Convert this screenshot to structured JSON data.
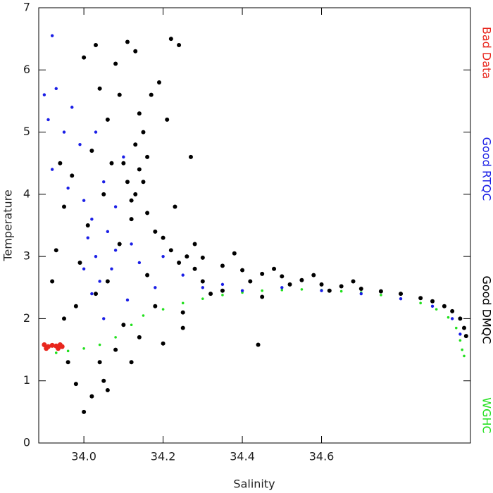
{
  "chart_data": {
    "type": "scatter",
    "x_label": "Salinity",
    "y_label": "Temperature",
    "xlim": [
      33.886,
      34.976
    ],
    "ylim": [
      0,
      7
    ],
    "xticks": [
      {
        "value": 34,
        "label": "34.0"
      },
      34.2,
      34.4,
      34.6
    ],
    "yticks": [
      0,
      1,
      2,
      3,
      4,
      5,
      6,
      7
    ],
    "series": [
      {
        "name": "Bad Data",
        "color": "#e8261d",
        "x": [
          33.9,
          33.91,
          33.92,
          33.93,
          33.94,
          33.945,
          33.905,
          33.935
        ],
        "values": [
          1.58,
          1.55,
          1.57,
          1.56,
          1.58,
          1.55,
          1.52,
          1.52
        ]
      },
      {
        "name": "Good RTQC",
        "color": "#1a1ee6",
        "x": [
          33.9,
          33.91,
          33.92,
          33.92,
          33.93,
          33.95,
          33.97,
          33.99,
          34.0,
          34.01,
          34.02,
          34.03,
          34.04,
          34.05,
          34.06,
          34.07,
          34.08,
          34.1,
          34.12,
          34.14,
          34.0,
          34.02,
          34.05,
          34.08,
          34.2,
          34.25,
          34.3,
          34.35,
          34.4,
          34.5,
          34.6,
          34.7,
          34.8,
          34.88,
          34.93,
          34.95,
          34.18,
          34.03,
          33.96,
          34.11
        ],
        "values": [
          5.6,
          5.2,
          4.4,
          6.55,
          5.7,
          5.0,
          5.4,
          4.8,
          3.9,
          3.3,
          3.6,
          3.0,
          2.6,
          4.2,
          3.4,
          2.8,
          3.8,
          4.6,
          3.2,
          2.9,
          2.8,
          2.4,
          2.0,
          3.1,
          3.0,
          2.7,
          2.5,
          2.55,
          2.45,
          2.5,
          2.45,
          2.4,
          2.32,
          2.2,
          2.0,
          1.75,
          2.5,
          5.0,
          4.1,
          2.3
        ]
      },
      {
        "name": "Good DMQC",
        "color": "#000000",
        "x": [
          34.3,
          34.35,
          34.4,
          34.45,
          34.5,
          34.55,
          34.6,
          34.65,
          34.7,
          34.75,
          34.8,
          34.85,
          34.88,
          34.91,
          34.93,
          34.95,
          34.96,
          34.965,
          34.42,
          34.48,
          34.52,
          34.58,
          34.62,
          34.68,
          34.45,
          34.44,
          34.35,
          34.25,
          34.25,
          34.3,
          34.38,
          34.28,
          34.32,
          34.12,
          34.13,
          34.14,
          34.13,
          34.15,
          34.16,
          34.11,
          34.14,
          34.17,
          34.19,
          34.21,
          34.12,
          34.15,
          34.1,
          34.16,
          34.18,
          34.2,
          34.22,
          34.24,
          34.26,
          33.92,
          33.93,
          33.95,
          33.96,
          33.98,
          34.0,
          34.02,
          34.04,
          34.06,
          34.08,
          34.1,
          34.03,
          33.99,
          34.01,
          34.05,
          34.07,
          34.09,
          34.02,
          34.06,
          34.08,
          34.11,
          34.13,
          34.0,
          34.03,
          34.22,
          34.24,
          33.97,
          33.95,
          33.94,
          34.04,
          34.09,
          34.18,
          34.2,
          34.14,
          34.06,
          33.98,
          34.16,
          34.27,
          34.23,
          34.28,
          34.05,
          34.12
        ],
        "values": [
          2.98,
          2.85,
          2.78,
          2.72,
          2.68,
          2.62,
          2.55,
          2.52,
          2.48,
          2.44,
          2.4,
          2.33,
          2.28,
          2.2,
          2.12,
          2.0,
          1.85,
          1.72,
          2.6,
          2.8,
          2.55,
          2.7,
          2.45,
          2.6,
          2.35,
          1.58,
          2.45,
          2.1,
          1.85,
          2.6,
          3.05,
          3.2,
          2.4,
          3.6,
          4.0,
          4.4,
          4.8,
          5.0,
          4.6,
          4.2,
          5.3,
          5.6,
          5.8,
          5.2,
          3.9,
          4.2,
          4.5,
          3.7,
          3.4,
          3.3,
          3.1,
          2.9,
          3.0,
          2.6,
          3.1,
          2.0,
          1.3,
          0.95,
          0.5,
          0.75,
          1.3,
          0.85,
          1.5,
          1.9,
          2.4,
          2.9,
          3.5,
          4.0,
          4.5,
          3.2,
          4.7,
          5.2,
          6.1,
          6.45,
          6.3,
          6.2,
          6.4,
          6.5,
          6.4,
          4.3,
          3.8,
          4.5,
          5.7,
          5.6,
          2.2,
          1.6,
          1.7,
          2.6,
          2.2,
          2.7,
          4.6,
          3.8,
          2.8,
          1.0,
          1.3
        ]
      },
      {
        "name": "WGHC",
        "color": "#22e01e",
        "x": [
          33.93,
          33.96,
          34.0,
          34.04,
          34.08,
          34.12,
          34.15,
          34.2,
          34.25,
          34.3,
          34.35,
          34.4,
          34.45,
          34.5,
          34.55,
          34.6,
          34.65,
          34.7,
          34.75,
          34.8,
          34.85,
          34.89,
          34.92,
          34.94,
          34.95,
          34.955,
          34.96
        ],
        "values": [
          1.45,
          1.48,
          1.52,
          1.58,
          1.7,
          1.9,
          2.05,
          2.15,
          2.25,
          2.32,
          2.38,
          2.42,
          2.45,
          2.46,
          2.47,
          2.46,
          2.44,
          2.42,
          2.38,
          2.32,
          2.25,
          2.15,
          2.02,
          1.85,
          1.65,
          1.5,
          1.4
        ]
      }
    ]
  }
}
